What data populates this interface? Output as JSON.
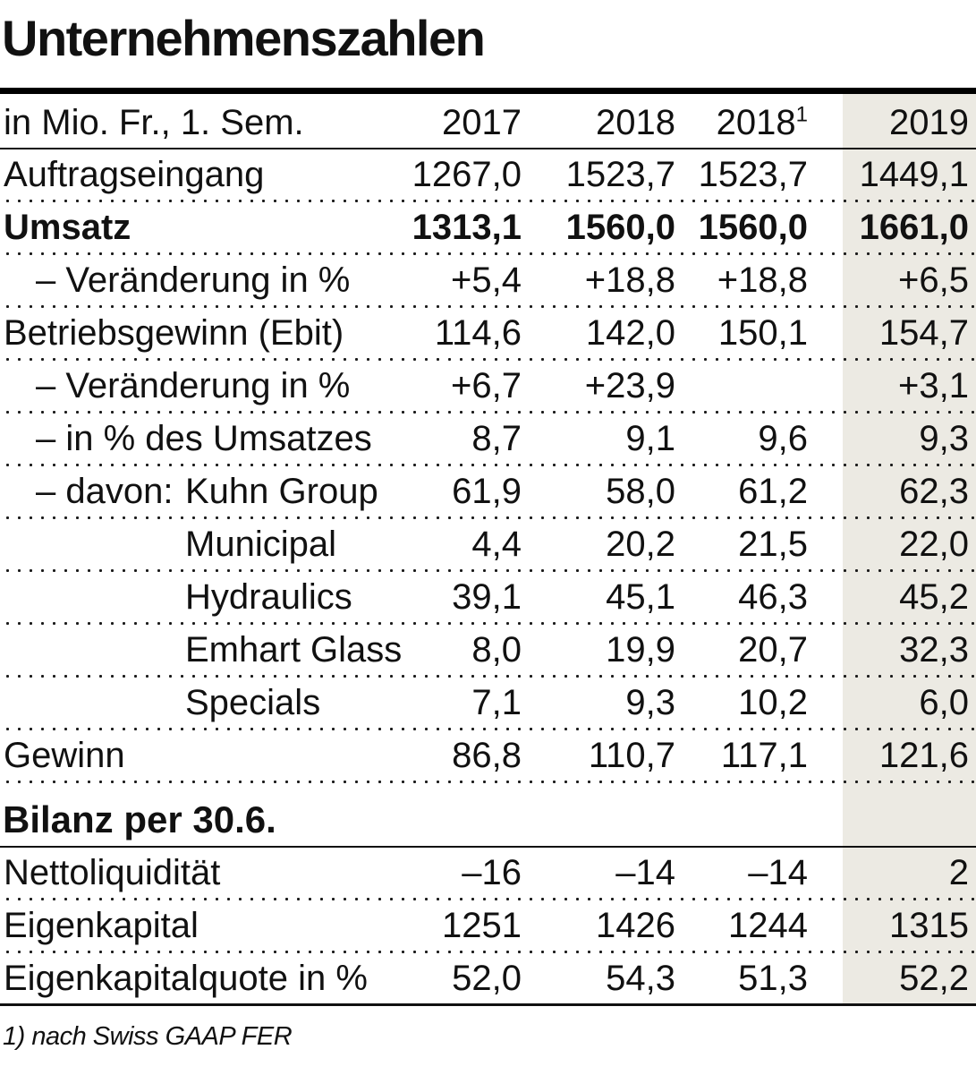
{
  "title": "Unternehmenszahlen",
  "colors": {
    "highlight_column": "#eceae3",
    "text": "#111111",
    "rule": "#000000"
  },
  "table": {
    "unit_label": "in Mio. Fr., 1. Sem.",
    "columns": [
      {
        "text": "2017",
        "sup": ""
      },
      {
        "text": "2018",
        "sup": ""
      },
      {
        "text": "2018",
        "sup": "1"
      },
      {
        "text": "2019",
        "sup": ""
      }
    ],
    "rows": [
      {
        "prefix": "",
        "label": "Auftragseingang",
        "values": [
          "1267,0",
          "1523,7",
          "1523,7",
          "1449,1"
        ]
      },
      {
        "prefix": "",
        "label": "Umsatz",
        "values": [
          "1313,1",
          "1560,0",
          "1560,0",
          "1661,0"
        ]
      },
      {
        "prefix": "",
        "label": "– Veränderung in %",
        "values": [
          "+5,4",
          "+18,8",
          "+18,8",
          "+6,5"
        ]
      },
      {
        "prefix": "",
        "label": "Betriebsgewinn (Ebit)",
        "values": [
          "114,6",
          "142,0",
          "150,1",
          "154,7"
        ]
      },
      {
        "prefix": "",
        "label": "– Veränderung in %",
        "values": [
          "+6,7",
          "+23,9",
          "",
          "+3,1"
        ]
      },
      {
        "prefix": "",
        "label": "– in % des Umsatzes",
        "values": [
          "8,7",
          "9,1",
          "9,6",
          "9,3"
        ]
      },
      {
        "prefix": "– davon:",
        "label": "Kuhn Group",
        "values": [
          "61,9",
          "58,0",
          "61,2",
          "62,3"
        ]
      },
      {
        "prefix": "",
        "label": "Municipal",
        "values": [
          "4,4",
          "20,2",
          "21,5",
          "22,0"
        ]
      },
      {
        "prefix": "",
        "label": "Hydraulics",
        "values": [
          "39,1",
          "45,1",
          "46,3",
          "45,2"
        ]
      },
      {
        "prefix": "",
        "label": "Emhart Glass",
        "values": [
          "8,0",
          "19,9",
          "20,7",
          "32,3"
        ]
      },
      {
        "prefix": "",
        "label": "Specials",
        "values": [
          "7,1",
          "9,3",
          "10,2",
          "6,0"
        ]
      },
      {
        "prefix": "",
        "label": "Gewinn",
        "values": [
          "86,8",
          "110,7",
          "117,1",
          "121,6"
        ]
      }
    ],
    "section": {
      "label": "Bilanz per 30.6."
    },
    "balance_rows": [
      {
        "label": "Nettoliquidität",
        "values": [
          "–16",
          "–14",
          "–14",
          "2"
        ]
      },
      {
        "label": "Eigenkapital",
        "values": [
          "1251",
          "1426",
          "1244",
          "1315"
        ]
      },
      {
        "label": "Eigenkapitalquote in %",
        "values": [
          "52,0",
          "54,3",
          "51,3",
          "52,2"
        ]
      }
    ]
  },
  "footnote": "1) nach Swiss GAAP FER"
}
